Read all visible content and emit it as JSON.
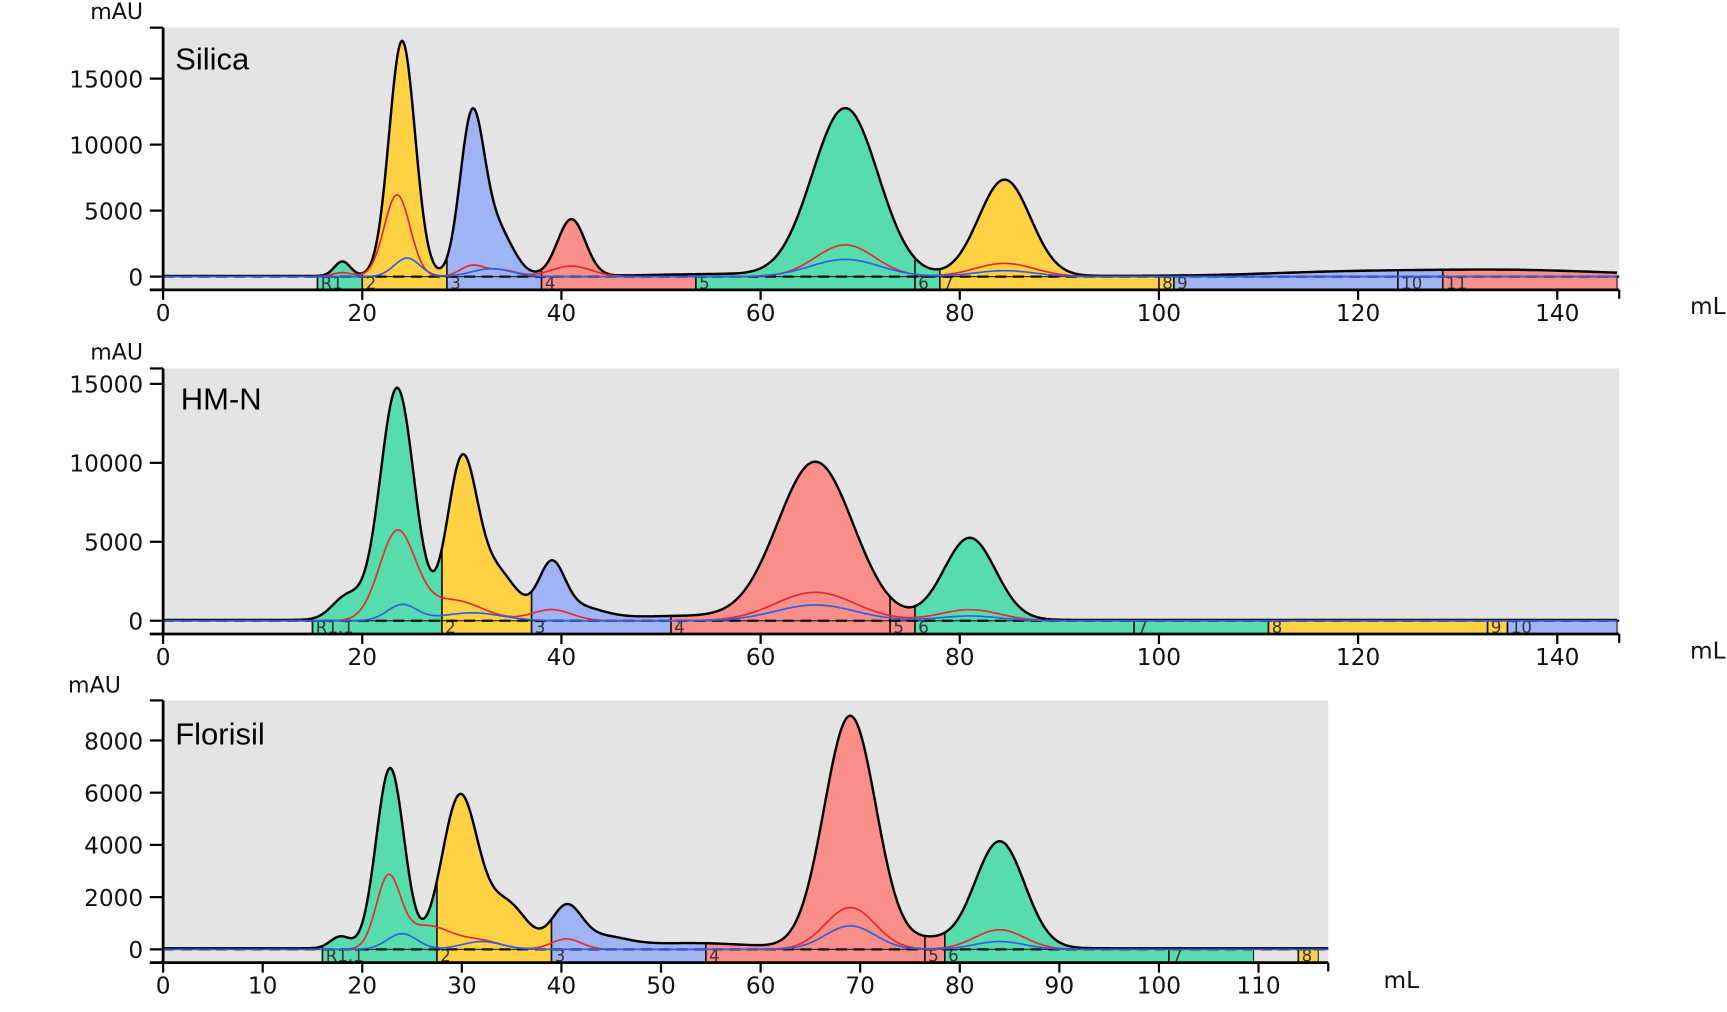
{
  "chart_data": [
    {
      "type": "area",
      "title": "Silica",
      "xlabel": "mL",
      "ylabel": "mAU",
      "xlim": [
        0,
        146
      ],
      "ylim": [
        -1000,
        19000
      ],
      "x_ticks": [
        0,
        20,
        40,
        60,
        80,
        100,
        120,
        140
      ],
      "y_ticks": [
        0,
        5000,
        10000,
        15000
      ],
      "grid": false,
      "background": "#e4e4e4",
      "series": [
        {
          "color": "#000000",
          "baseline": 50,
          "peaks": [
            [
              18,
              1100,
              0.8
            ],
            [
              24,
              17800,
              1.3
            ],
            [
              31,
              11600,
              1.2
            ],
            [
              33.5,
              3500,
              1.6
            ],
            [
              41,
              4300,
              1.4
            ],
            [
              56,
              150,
              6
            ],
            [
              68.5,
              12700,
              3.3
            ],
            [
              84.5,
              7300,
              2.6
            ],
            [
              118,
              250,
              8
            ],
            [
              135,
              450,
              10
            ]
          ]
        },
        {
          "color": "#e8282a",
          "baseline": 0,
          "peaks": [
            [
              18,
              300,
              1
            ],
            [
              23.5,
              6200,
              1.3
            ],
            [
              31,
              800,
              1.2
            ],
            [
              34,
              500,
              1.5
            ],
            [
              41,
              800,
              2
            ],
            [
              68.5,
              2400,
              3
            ],
            [
              84.5,
              1000,
              3
            ]
          ]
        },
        {
          "color": "#2f5fe0",
          "baseline": 0,
          "peaks": [
            [
              24.5,
              1400,
              1.3
            ],
            [
              33,
              600,
              2
            ],
            [
              68.5,
              1300,
              3.5
            ],
            [
              84.5,
              450,
              3
            ]
          ]
        }
      ],
      "fractions": [
        {
          "label": "R1",
          "start": 15.5,
          "end": 20,
          "color": "#57dcae"
        },
        {
          "label": "2",
          "start": 20,
          "end": 28.5,
          "color": "#ffd145"
        },
        {
          "label": "3",
          "start": 28.5,
          "end": 38,
          "color": "#a0b4f5"
        },
        {
          "label": "4",
          "start": 38,
          "end": 53.5,
          "color": "#fa8e89"
        },
        {
          "label": "5",
          "start": 53.5,
          "end": 75.5,
          "color": "#57dcae"
        },
        {
          "label": "6",
          "start": 75.5,
          "end": 78,
          "color": "#57dcae"
        },
        {
          "label": "7",
          "start": 78,
          "end": 100,
          "color": "#ffd145"
        },
        {
          "label": "8",
          "start": 100,
          "end": 101.5,
          "color": "#ffd145"
        },
        {
          "label": "9",
          "start": 101.5,
          "end": 124,
          "color": "#a0b4f5"
        },
        {
          "label": "10",
          "start": 124,
          "end": 128.5,
          "color": "#a0b4f5"
        },
        {
          "label": "11",
          "start": 128.5,
          "end": 146,
          "color": "#fa8e89"
        }
      ]
    },
    {
      "type": "area",
      "title": "HM-N",
      "xlabel": "mL",
      "ylabel": "mAU",
      "xlim": [
        0,
        146
      ],
      "ylim": [
        -850,
        16000
      ],
      "x_ticks": [
        0,
        20,
        40,
        60,
        80,
        100,
        120,
        140
      ],
      "y_ticks": [
        0,
        5000,
        10000,
        15000
      ],
      "grid": false,
      "background": "#e4e4e4",
      "series": [
        {
          "color": "#000000",
          "baseline": 50,
          "peaks": [
            [
              18.5,
              1500,
              1.5
            ],
            [
              23.5,
              14700,
              1.7
            ],
            [
              30,
              9800,
              1.5
            ],
            [
              33.5,
              3000,
              2
            ],
            [
              39,
              3200,
              1.3
            ],
            [
              41.5,
              800,
              2.5
            ],
            [
              52,
              250,
              6
            ],
            [
              65.5,
              10000,
              3.8
            ],
            [
              81,
              5200,
              2.6
            ]
          ]
        },
        {
          "color": "#e8282a",
          "baseline": 0,
          "peaks": [
            [
              23.5,
              5500,
              1.8
            ],
            [
              29,
              1300,
              3
            ],
            [
              39,
              700,
              2
            ],
            [
              65.5,
              1800,
              4
            ],
            [
              81,
              700,
              3
            ]
          ]
        },
        {
          "color": "#2f5fe0",
          "baseline": 0,
          "peaks": [
            [
              24,
              1000,
              1.5
            ],
            [
              31,
              500,
              3
            ],
            [
              65.5,
              1000,
              4
            ],
            [
              81,
              300,
              3
            ]
          ]
        }
      ],
      "fractions": [
        {
          "label": "R1.1",
          "start": 15,
          "end": 28,
          "color": "#57dcae"
        },
        {
          "label": "2",
          "start": 28,
          "end": 37,
          "color": "#ffd145"
        },
        {
          "label": "3",
          "start": 37,
          "end": 51,
          "color": "#a0b4f5"
        },
        {
          "label": "4",
          "start": 51,
          "end": 73,
          "color": "#fa8e89"
        },
        {
          "label": "5",
          "start": 73,
          "end": 75.5,
          "color": "#fa8e89"
        },
        {
          "label": "6",
          "start": 75.5,
          "end": 97.5,
          "color": "#57dcae"
        },
        {
          "label": "7",
          "start": 97.5,
          "end": 111,
          "color": "#57dcae"
        },
        {
          "label": "8",
          "start": 111,
          "end": 133,
          "color": "#ffd145"
        },
        {
          "label": "9",
          "start": 133,
          "end": 135,
          "color": "#ffd145"
        },
        {
          "label": "10",
          "start": 135,
          "end": 146,
          "color": "#a0b4f5"
        }
      ]
    },
    {
      "type": "area",
      "title": "Florisil",
      "xlabel": "mL",
      "ylabel": "mAU",
      "xlim": [
        0,
        117
      ],
      "ylim": [
        -500,
        9500
      ],
      "x_ticks": [
        0,
        10,
        20,
        30,
        40,
        50,
        60,
        70,
        80,
        90,
        100,
        110
      ],
      "y_ticks": [
        0,
        2000,
        4000,
        6000,
        8000
      ],
      "grid": false,
      "background": "#e4e4e4",
      "series": [
        {
          "color": "#000000",
          "baseline": 40,
          "peaks": [
            [
              17.8,
              450,
              1
            ],
            [
              22.8,
              6900,
              1.4
            ],
            [
              29.8,
              5800,
              1.8
            ],
            [
              34.5,
              1700,
              2
            ],
            [
              40.5,
              1500,
              1.5
            ],
            [
              44,
              400,
              2.5
            ],
            [
              53,
              200,
              6
            ],
            [
              69,
              8900,
              2.6
            ],
            [
              77,
              300,
              2
            ],
            [
              84,
              4100,
              2.5
            ]
          ]
        },
        {
          "color": "#e8282a",
          "baseline": 0,
          "peaks": [
            [
              22.6,
              2600,
              1.2
            ],
            [
              26.5,
              900,
              2.5
            ],
            [
              32,
              300,
              2
            ],
            [
              40.5,
              400,
              1.5
            ],
            [
              69,
              1600,
              2.5
            ],
            [
              84,
              750,
              2.5
            ]
          ]
        },
        {
          "color": "#2f5fe0",
          "baseline": 0,
          "peaks": [
            [
              24,
              600,
              1.5
            ],
            [
              32,
              300,
              2
            ],
            [
              69,
              900,
              2.5
            ],
            [
              84,
              300,
              2.5
            ]
          ]
        }
      ],
      "fractions": [
        {
          "label": "R1.1",
          "start": 16,
          "end": 27.5,
          "color": "#57dcae"
        },
        {
          "label": "2",
          "start": 27.5,
          "end": 39,
          "color": "#ffd145"
        },
        {
          "label": "3",
          "start": 39,
          "end": 54.5,
          "color": "#a0b4f5"
        },
        {
          "label": "4",
          "start": 54.5,
          "end": 76.5,
          "color": "#fa8e89"
        },
        {
          "label": "5",
          "start": 76.5,
          "end": 78.5,
          "color": "#fa8e89"
        },
        {
          "label": "6",
          "start": 78.5,
          "end": 101,
          "color": "#57dcae"
        },
        {
          "label": "7",
          "start": 101,
          "end": 109.5,
          "color": "#57dcae"
        },
        {
          "label": "8",
          "start": 114,
          "end": 116,
          "color": "#ffd145"
        }
      ]
    }
  ]
}
